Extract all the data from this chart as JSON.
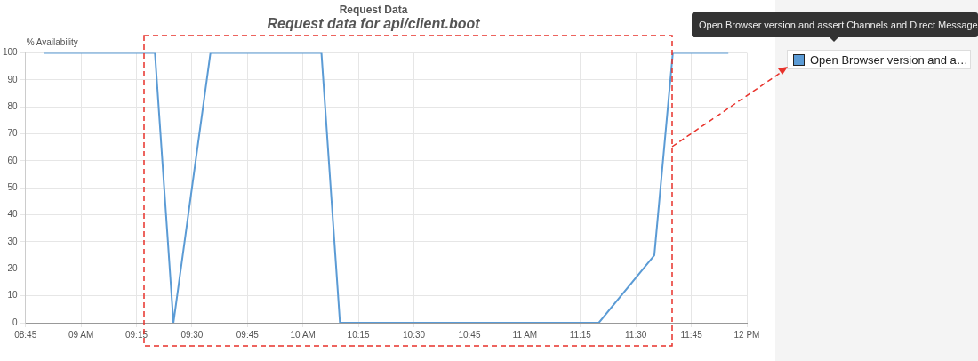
{
  "chart_data": {
    "type": "line",
    "title": "Request Data",
    "subtitle": "Request data for api/client.boot",
    "ylabel": "% Availability",
    "x": [
      8.8333,
      9.3333,
      9.4167,
      9.5833,
      10.0833,
      10.1667,
      11.3333,
      11.5833,
      11.6667,
      11.9167
    ],
    "annotations": [
      "Open Browser version and assert Channels and Direct Message"
    ],
    "series": [
      {
        "name": "Open Browser version and a…",
        "color": "#5b9bd5",
        "values": [
          100,
          100,
          0,
          100,
          100,
          0,
          0,
          25,
          100,
          100
        ]
      }
    ],
    "xlim": [
      8.75,
      12
    ],
    "xticks": [
      {
        "value": 8.75,
        "label": "08:45"
      },
      {
        "value": 9,
        "label": "09 AM"
      },
      {
        "value": 9.25,
        "label": "09:15"
      },
      {
        "value": 9.5,
        "label": "09:30"
      },
      {
        "value": 9.75,
        "label": "09:45"
      },
      {
        "value": 10,
        "label": "10 AM"
      },
      {
        "value": 10.25,
        "label": "10:15"
      },
      {
        "value": 10.5,
        "label": "10:30"
      },
      {
        "value": 10.75,
        "label": "10:45"
      },
      {
        "value": 11,
        "label": "11 AM"
      },
      {
        "value": 11.25,
        "label": "11:15"
      },
      {
        "value": 11.5,
        "label": "11:30"
      },
      {
        "value": 11.75,
        "label": "11:45"
      },
      {
        "value": 12,
        "label": "12 PM"
      }
    ],
    "ylim": [
      0,
      100
    ],
    "yticks": [
      0,
      10,
      20,
      30,
      40,
      50,
      60,
      70,
      80,
      90,
      100
    ],
    "grid": true,
    "legend": "top right",
    "marker": "none",
    "line_style": "solid"
  }
}
